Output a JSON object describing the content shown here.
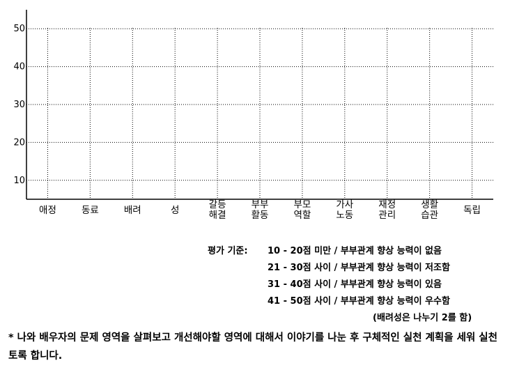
{
  "chart_data": {
    "type": "bar",
    "categories": [
      [
        "애정"
      ],
      [
        "동료"
      ],
      [
        "배려"
      ],
      [
        "성"
      ],
      [
        "갈등",
        "해결"
      ],
      [
        "부부",
        "활동"
      ],
      [
        "부모",
        "역할"
      ],
      [
        "가사",
        "노동"
      ],
      [
        "재정",
        "관리"
      ],
      [
        "생활",
        "습관"
      ],
      [
        "독립"
      ]
    ],
    "values": [
      null,
      null,
      null,
      null,
      null,
      null,
      null,
      null,
      null,
      null,
      null
    ],
    "yticks": [
      10,
      20,
      30,
      40,
      50
    ],
    "ylim": [
      5,
      55
    ],
    "grid": true
  },
  "legend": {
    "prefix": "평가 기준:",
    "lines": [
      "10 - 20점 미만 / 부부관계 향상 능력이 없음",
      "21 - 30점 사이 / 부부관계 향상 능력이 저조함",
      "31 - 40점 사이 / 부부관계 향상 능력이 있음",
      "41 - 50점 사이 / 부부관계 향상 능력이 우수함"
    ],
    "note": "(배려성은 나누기 2를 함)"
  },
  "footnote": "* 나와 배우자의 문제 영역을 살펴보고 개선해야할 영역에 대해서 이야기를 나눈 후 구체적인 실천 계획을 세워 실천토록 합니다."
}
